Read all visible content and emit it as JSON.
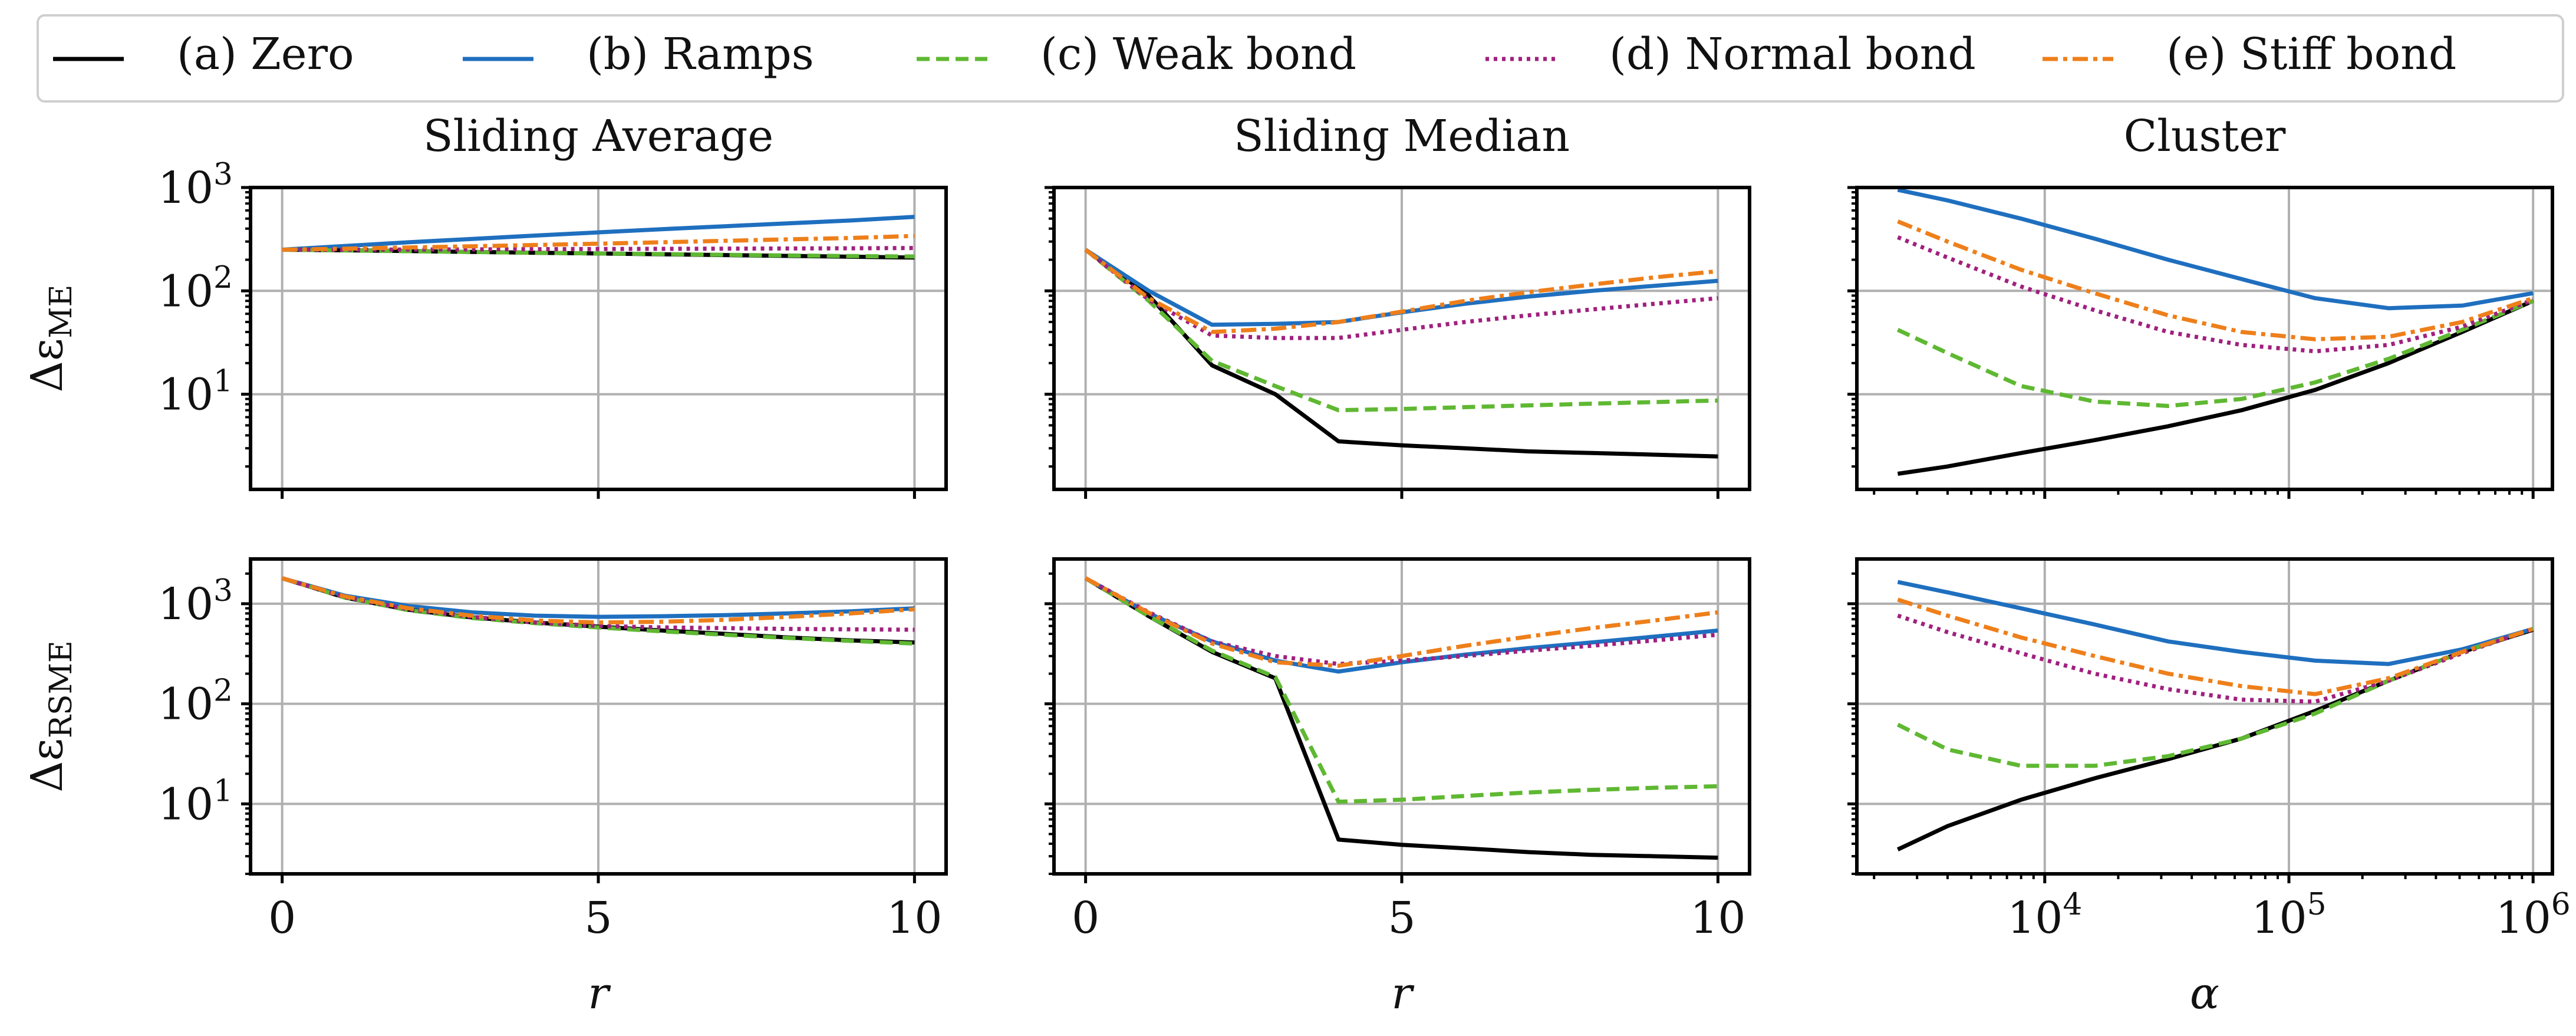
{
  "legend": [
    {
      "label": "(a) Zero",
      "color": "#000000",
      "dash": "solid"
    },
    {
      "label": "(b) Ramps",
      "color": "#1f6fbf",
      "dash": "solid"
    },
    {
      "label": "(c) Weak bond",
      "color": "#5fb832",
      "dash": "dashed"
    },
    {
      "label": "(d) Normal bond",
      "color": "#a0207e",
      "dash": "dotted"
    },
    {
      "label": "(e) Stiff bond",
      "color": "#ee7f1a",
      "dash": "dashdot"
    }
  ],
  "chart_data": [
    {
      "type": "line",
      "title": "Sliding Average",
      "xlabel": "",
      "ylabel": "Δε_ME",
      "xscale": "linear",
      "yscale": "log",
      "xlim": [
        -0.5,
        10.5
      ],
      "ylim": [
        1.2,
        1000
      ],
      "xticks": [
        "0",
        "5",
        "10"
      ],
      "yticks": [
        "10^3",
        "10^2",
        "10^1"
      ],
      "series": [
        {
          "name": "(a) Zero",
          "x": [
            0,
            1,
            2,
            3,
            4,
            5,
            6,
            7,
            8,
            9,
            10
          ],
          "y": [
            250,
            247,
            243,
            238,
            234,
            230,
            226,
            222,
            218,
            214,
            210
          ]
        },
        {
          "name": "(b) Ramps",
          "x": [
            0,
            1,
            2,
            3,
            4,
            5,
            6,
            7,
            8,
            9,
            10
          ],
          "y": [
            250,
            272,
            295,
            318,
            343,
            368,
            395,
            422,
            450,
            480,
            520
          ]
        },
        {
          "name": "(c) Weak bond",
          "x": [
            0,
            1,
            2,
            3,
            4,
            5,
            6,
            7,
            8,
            9,
            10
          ],
          "y": [
            250,
            246,
            242,
            238,
            234,
            230,
            227,
            223,
            220,
            217,
            215
          ]
        },
        {
          "name": "(d) Normal bond",
          "x": [
            0,
            1,
            2,
            3,
            4,
            5,
            6,
            7,
            8,
            9,
            10
          ],
          "y": [
            250,
            250,
            251,
            252,
            253,
            254,
            255,
            256,
            257,
            258,
            260
          ]
        },
        {
          "name": "(e) Stiff bond",
          "x": [
            0,
            1,
            2,
            3,
            4,
            5,
            6,
            7,
            8,
            9,
            10
          ],
          "y": [
            250,
            256,
            263,
            270,
            278,
            286,
            295,
            305,
            315,
            325,
            340
          ]
        }
      ]
    },
    {
      "type": "line",
      "title": "Sliding Median",
      "xlabel": "",
      "ylabel": "",
      "xscale": "linear",
      "yscale": "log",
      "xlim": [
        -0.5,
        10.5
      ],
      "ylim": [
        1.2,
        1000
      ],
      "xticks": [
        "0",
        "5",
        "10"
      ],
      "yticks": [],
      "series": [
        {
          "name": "(a) Zero",
          "x": [
            0,
            1,
            2,
            3,
            4,
            5,
            6,
            7,
            8,
            9,
            10
          ],
          "y": [
            250,
            90,
            19,
            10,
            3.5,
            3.2,
            3.0,
            2.8,
            2.7,
            2.6,
            2.5
          ]
        },
        {
          "name": "(b) Ramps",
          "x": [
            0,
            1,
            2,
            3,
            4,
            5,
            6,
            7,
            8,
            9,
            10
          ],
          "y": [
            250,
            100,
            47,
            48,
            50,
            62,
            75,
            88,
            100,
            112,
            125
          ]
        },
        {
          "name": "(c) Weak bond",
          "x": [
            0,
            1,
            2,
            3,
            4,
            5,
            6,
            7,
            8,
            9,
            10
          ],
          "y": [
            250,
            80,
            21,
            12,
            7,
            7.2,
            7.5,
            7.8,
            8.1,
            8.4,
            8.7
          ]
        },
        {
          "name": "(d) Normal bond",
          "x": [
            0,
            1,
            2,
            3,
            4,
            5,
            6,
            7,
            8,
            9,
            10
          ],
          "y": [
            250,
            82,
            37,
            35,
            35,
            42,
            50,
            58,
            66,
            75,
            85
          ]
        },
        {
          "name": "(e) Stiff bond",
          "x": [
            0,
            1,
            2,
            3,
            4,
            5,
            6,
            7,
            8,
            9,
            10
          ],
          "y": [
            250,
            85,
            40,
            43,
            50,
            63,
            80,
            97,
            115,
            135,
            155
          ]
        }
      ]
    },
    {
      "type": "line",
      "title": "Cluster",
      "xlabel": "",
      "ylabel": "",
      "xscale": "log",
      "yscale": "log",
      "xlim": [
        1700,
        1200000
      ],
      "ylim": [
        1.2,
        1000
      ],
      "xticks": [
        "10^4",
        "10^5",
        "10^6"
      ],
      "yticks": [],
      "series": [
        {
          "name": "(a) Zero",
          "x": [
            2500,
            4000,
            8000,
            16000,
            32000,
            64000,
            128000,
            256000,
            512000,
            1000000
          ],
          "y": [
            1.7,
            2.0,
            2.7,
            3.6,
            4.9,
            7.0,
            11,
            20,
            40,
            80
          ]
        },
        {
          "name": "(b) Ramps",
          "x": [
            2500,
            4000,
            8000,
            16000,
            32000,
            64000,
            128000,
            256000,
            512000,
            1000000
          ],
          "y": [
            950,
            750,
            500,
            320,
            200,
            130,
            85,
            68,
            72,
            95
          ]
        },
        {
          "name": "(c) Weak bond",
          "x": [
            2500,
            4000,
            8000,
            16000,
            32000,
            64000,
            128000,
            256000,
            512000,
            1000000
          ],
          "y": [
            42,
            25,
            12,
            8.5,
            7.7,
            9.0,
            13,
            22,
            42,
            80
          ]
        },
        {
          "name": "(d) Normal bond",
          "x": [
            2500,
            4000,
            8000,
            16000,
            32000,
            64000,
            128000,
            256000,
            512000,
            1000000
          ],
          "y": [
            330,
            210,
            110,
            65,
            40,
            30,
            26,
            30,
            45,
            82
          ]
        },
        {
          "name": "(e) Stiff bond",
          "x": [
            2500,
            4000,
            8000,
            16000,
            32000,
            64000,
            128000,
            256000,
            512000,
            1000000
          ],
          "y": [
            470,
            300,
            160,
            95,
            58,
            40,
            34,
            36,
            50,
            85
          ]
        }
      ]
    },
    {
      "type": "line",
      "title": "",
      "xlabel": "r",
      "ylabel": "Δε_RSME",
      "xscale": "linear",
      "yscale": "log",
      "xlim": [
        -0.5,
        10.5
      ],
      "ylim": [
        2,
        2800
      ],
      "xticks": [
        "0",
        "5",
        "10"
      ],
      "yticks": [
        "10^3",
        "10^2",
        "10^1"
      ],
      "series": [
        {
          "name": "(a) Zero",
          "x": [
            0,
            1,
            2,
            3,
            4,
            5,
            6,
            7,
            8,
            9,
            10
          ],
          "y": [
            1800,
            1150,
            870,
            730,
            650,
            590,
            540,
            500,
            460,
            430,
            410
          ]
        },
        {
          "name": "(b) Ramps",
          "x": [
            0,
            1,
            2,
            3,
            4,
            5,
            6,
            7,
            8,
            9,
            10
          ],
          "y": [
            1800,
            1200,
            950,
            820,
            760,
            740,
            750,
            770,
            800,
            840,
            900
          ]
        },
        {
          "name": "(c) Weak bond",
          "x": [
            0,
            1,
            2,
            3,
            4,
            5,
            6,
            7,
            8,
            9,
            10
          ],
          "y": [
            1800,
            1150,
            860,
            720,
            640,
            580,
            530,
            490,
            455,
            425,
            400
          ]
        },
        {
          "name": "(d) Normal bond",
          "x": [
            0,
            1,
            2,
            3,
            4,
            5,
            6,
            7,
            8,
            9,
            10
          ],
          "y": [
            1800,
            1160,
            880,
            740,
            650,
            600,
            580,
            570,
            560,
            555,
            550
          ]
        },
        {
          "name": "(e) Stiff bond",
          "x": [
            0,
            1,
            2,
            3,
            4,
            5,
            6,
            7,
            8,
            9,
            10
          ],
          "y": [
            1800,
            1180,
            900,
            760,
            680,
            650,
            660,
            690,
            740,
            800,
            880
          ]
        }
      ]
    },
    {
      "type": "line",
      "title": "",
      "xlabel": "r",
      "ylabel": "",
      "xscale": "linear",
      "yscale": "log",
      "xlim": [
        -0.5,
        10.5
      ],
      "ylim": [
        2,
        2800
      ],
      "xticks": [
        "0",
        "5",
        "10"
      ],
      "yticks": [],
      "series": [
        {
          "name": "(a) Zero",
          "x": [
            0,
            1,
            2,
            3,
            4,
            5,
            6,
            7,
            8,
            9,
            10
          ],
          "y": [
            1800,
            750,
            330,
            180,
            4.4,
            3.9,
            3.6,
            3.3,
            3.1,
            3.0,
            2.9
          ]
        },
        {
          "name": "(b) Ramps",
          "x": [
            0,
            1,
            2,
            3,
            4,
            5,
            6,
            7,
            8,
            9,
            10
          ],
          "y": [
            1800,
            800,
            420,
            270,
            210,
            260,
            310,
            360,
            410,
            470,
            540
          ]
        },
        {
          "name": "(c) Weak bond",
          "x": [
            0,
            1,
            2,
            3,
            4,
            5,
            6,
            7,
            8,
            9,
            10
          ],
          "y": [
            1800,
            750,
            340,
            185,
            10.5,
            11,
            12,
            13,
            13.8,
            14.5,
            15
          ]
        },
        {
          "name": "(d) Normal bond",
          "x": [
            0,
            1,
            2,
            3,
            4,
            5,
            6,
            7,
            8,
            9,
            10
          ],
          "y": [
            1800,
            820,
            420,
            300,
            250,
            270,
            300,
            340,
            380,
            430,
            490
          ]
        },
        {
          "name": "(e) Stiff bond",
          "x": [
            0,
            1,
            2,
            3,
            4,
            5,
            6,
            7,
            8,
            9,
            10
          ],
          "y": [
            1800,
            810,
            400,
            260,
            240,
            300,
            380,
            470,
            570,
            680,
            820
          ]
        }
      ]
    },
    {
      "type": "line",
      "title": "",
      "xlabel": "α",
      "ylabel": "",
      "xscale": "log",
      "yscale": "log",
      "xlim": [
        1700,
        1200000
      ],
      "ylim": [
        2,
        2800
      ],
      "xticks": [
        "10^4",
        "10^5",
        "10^6"
      ],
      "yticks": [],
      "series": [
        {
          "name": "(a) Zero",
          "x": [
            2500,
            4000,
            8000,
            16000,
            32000,
            64000,
            128000,
            256000,
            512000,
            1000000
          ],
          "y": [
            3.5,
            6,
            11,
            18,
            28,
            45,
            85,
            170,
            330,
            550
          ]
        },
        {
          "name": "(b) Ramps",
          "x": [
            2500,
            4000,
            8000,
            16000,
            32000,
            64000,
            128000,
            256000,
            512000,
            1000000
          ],
          "y": [
            1650,
            1300,
            900,
            620,
            420,
            330,
            270,
            250,
            350,
            560
          ]
        },
        {
          "name": "(c) Weak bond",
          "x": [
            2500,
            4000,
            8000,
            16000,
            32000,
            64000,
            128000,
            256000,
            512000,
            1000000
          ],
          "y": [
            62,
            35,
            24,
            24,
            30,
            45,
            80,
            170,
            330,
            560
          ]
        },
        {
          "name": "(d) Normal bond",
          "x": [
            2500,
            4000,
            8000,
            16000,
            32000,
            64000,
            128000,
            256000,
            512000,
            1000000
          ],
          "y": [
            760,
            520,
            320,
            200,
            140,
            110,
            105,
            170,
            320,
            560
          ]
        },
        {
          "name": "(e) Stiff bond",
          "x": [
            2500,
            4000,
            8000,
            16000,
            32000,
            64000,
            128000,
            256000,
            512000,
            1000000
          ],
          "y": [
            1100,
            760,
            460,
            300,
            200,
            150,
            125,
            180,
            330,
            560
          ]
        }
      ]
    }
  ]
}
